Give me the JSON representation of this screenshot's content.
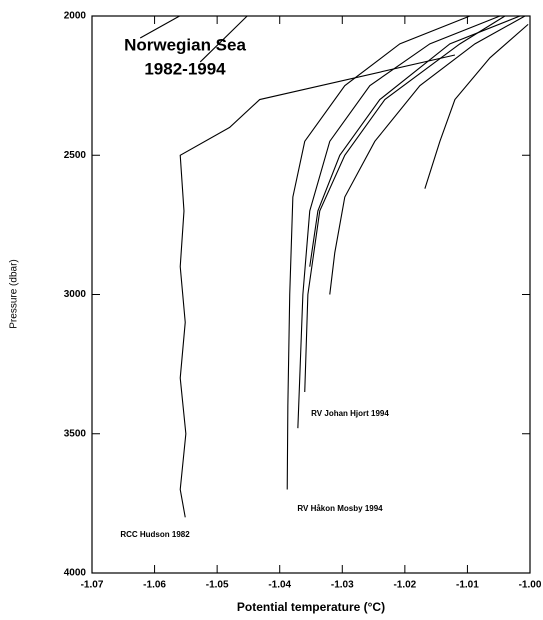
{
  "chart_data": {
    "type": "line",
    "xlabel": "Potential temperature (°C)",
    "ylabel": "Pressure (dbar)",
    "annotations": [
      "Norwegian Sea",
      "1982-1994",
      "RCC Hudson 1982",
      "RV Johan Hjort 1994",
      "RV Håkon Mosby 1994"
    ],
    "xlim": [
      -1.07,
      -1.0
    ],
    "ylim": [
      2000,
      4000
    ],
    "y_inverted": true,
    "xticks": [
      -1.07,
      -1.06,
      -1.05,
      -1.04,
      -1.03,
      -1.02,
      -1.01,
      {
        "value": -1.0,
        "label": "-1.00"
      }
    ],
    "yticks": [
      2000,
      2500,
      3000,
      3500,
      4000
    ],
    "series": [
      {
        "color": "#000000",
        "x": [
          -1.012,
          -1.0432,
          -1.048,
          -1.0559,
          -1.0553,
          -1.0559,
          -1.0551,
          -1.0559,
          -1.055,
          -1.0559,
          -1.0551
        ],
        "y": [
          2140,
          2300,
          2400,
          2500,
          2700,
          2900,
          3100,
          3300,
          3500,
          3700,
          3800
        ]
      },
      {
        "color": "#000000",
        "x": [
          -1.0096,
          -1.0208,
          -1.0296,
          -1.036,
          -1.0379,
          -1.0384,
          -1.0387,
          -1.0388
        ],
        "y": [
          2000,
          2100,
          2250,
          2450,
          2650,
          3000,
          3400,
          3700
        ]
      },
      {
        "color": "#000000",
        "x": [
          -1.0048,
          -1.016,
          -1.0256,
          -1.032,
          -1.0352,
          -1.0363,
          -1.0368,
          -1.0371
        ],
        "y": [
          2000,
          2100,
          2250,
          2450,
          2700,
          3000,
          3300,
          3480
        ]
      },
      {
        "color": "#000000",
        "x": [
          -1.004,
          -1.0112,
          -1.0232,
          -1.0296,
          -1.0336,
          -1.0355,
          -1.036
        ],
        "y": [
          2000,
          2100,
          2300,
          2500,
          2700,
          3000,
          3350
        ]
      },
      {
        "color": "#000000",
        "x": [
          -1.0008,
          -1.0088,
          -1.0176,
          -1.0248,
          -1.0296,
          -1.0312,
          -1.032
        ],
        "y": [
          2000,
          2100,
          2250,
          2450,
          2650,
          2850,
          3000
        ]
      },
      {
        "color": "#000000",
        "x": [
          -1.0016,
          -1.0128,
          -1.024,
          -1.0304,
          -1.0339,
          -1.0352
        ],
        "y": [
          2000,
          2100,
          2300,
          2500,
          2700,
          2900
        ]
      },
      {
        "color": "#000000",
        "x": [
          -1.0003,
          -1.0064,
          -1.012,
          -1.0144,
          -1.0168
        ],
        "y": [
          2030,
          2150,
          2300,
          2450,
          2620
        ]
      },
      {
        "color": "#000000",
        "x": [
          -1.056,
          -1.0623
        ],
        "y": [
          2000,
          2079
        ]
      },
      {
        "color": "#000000",
        "x": [
          -1.0452,
          -1.0527
        ],
        "y": [
          2000,
          2165
        ]
      }
    ]
  }
}
